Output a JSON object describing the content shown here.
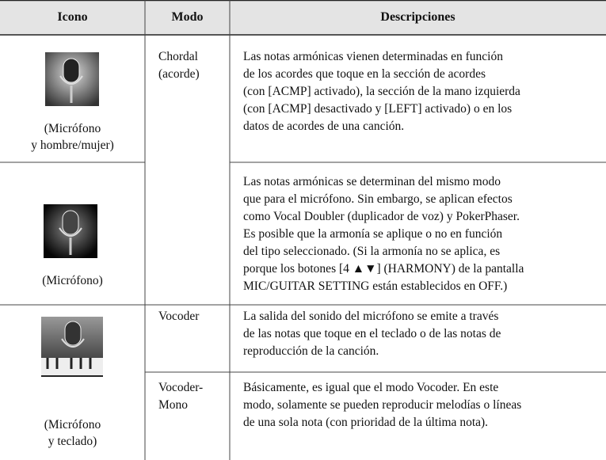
{
  "table": {
    "headers": [
      "Icono",
      "Modo",
      "Descripciones"
    ],
    "rows": [
      {
        "icon_label": [
          "(Micrófono",
          "y hombre/mujer)"
        ],
        "mode": [
          "Chordal",
          "(acorde)"
        ],
        "description": [
          "Las notas armónicas vienen determinadas en función",
          "de los acordes que toque en la sección de acordes",
          "(con [ACMP] activado), la sección de la mano izquierda",
          "(con [ACMP] desactivado y [LEFT] activado) o en los",
          "datos de acordes de una canción."
        ]
      },
      {
        "icon_label": [
          "(Micrófono)"
        ],
        "description": [
          "Las notas armónicas se determinan del mismo modo",
          "que para el micrófono. Sin embargo, se aplican efectos",
          "como Vocal Doubler (duplicador de voz) y PokerPhaser.",
          "Es posible que la armonía se aplique o no en función",
          "del tipo seleccionado. (Si la armonía no se aplica, es",
          "porque los botones [4 ▲▼] (HARMONY) de la pantalla",
          "MIC/GUITAR SETTING están establecidos en OFF.)"
        ]
      },
      {
        "icon_label": [
          "(Micrófono",
          "y teclado)"
        ],
        "mode": [
          "Vocoder"
        ],
        "description": [
          "La salida del sonido del micrófono se emite a través",
          "de las notas que toque en el teclado o de las notas de",
          "reproducción de la canción."
        ]
      },
      {
        "mode": [
          "Vocoder-",
          "Mono"
        ],
        "description": [
          "Básicamente, es igual que el modo Vocoder. En este",
          "modo, solamente se pueden reproducir melodías o líneas",
          "de una sola nota (con prioridad de la última nota)."
        ]
      }
    ]
  }
}
